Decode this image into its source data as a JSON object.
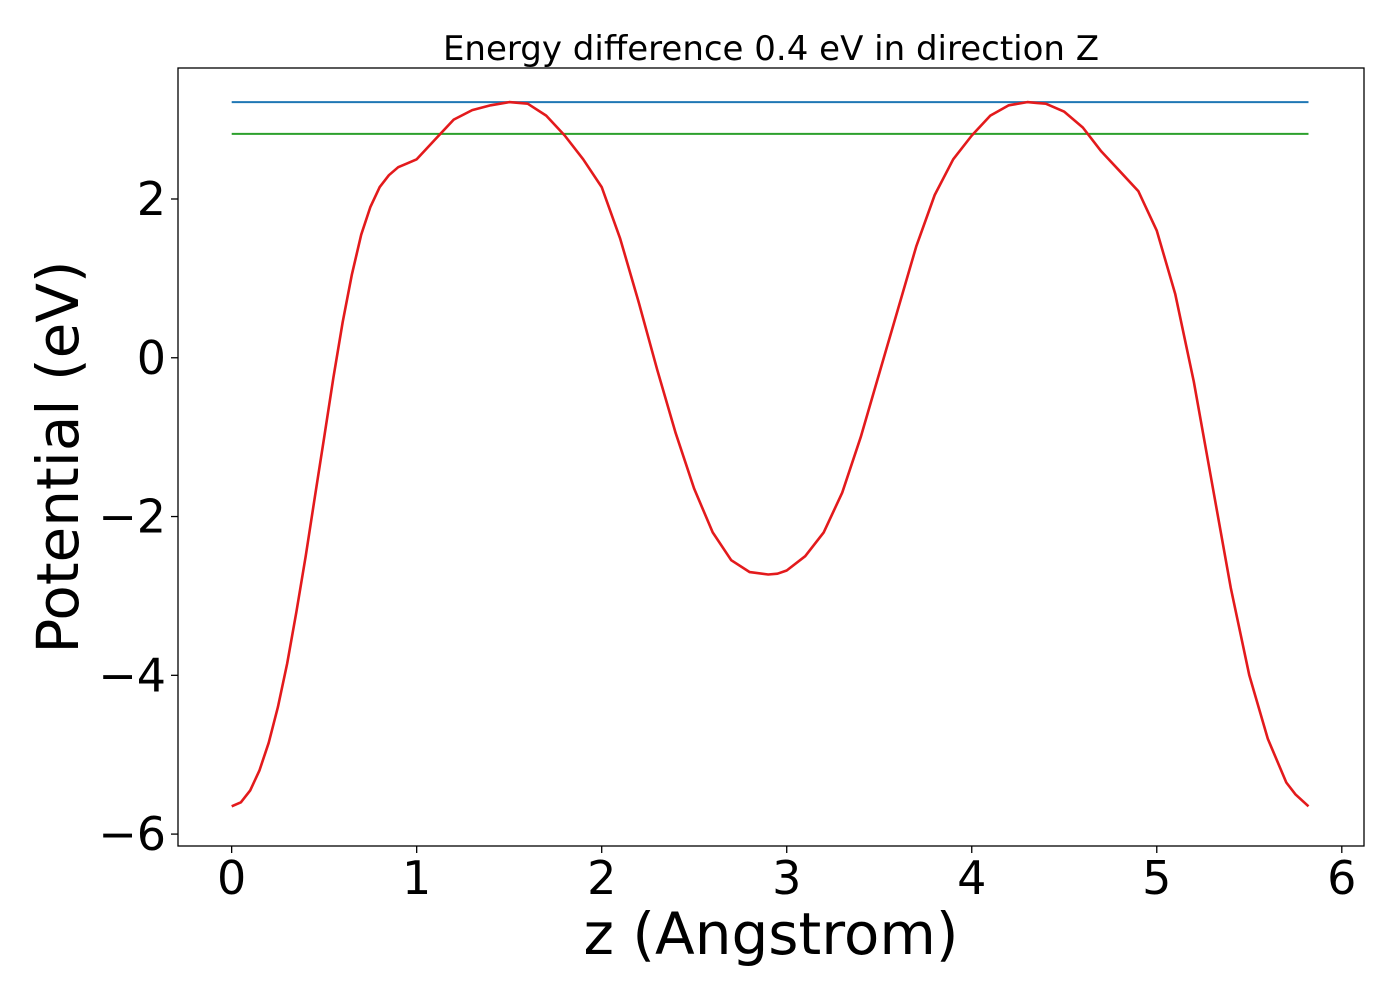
{
  "chart_data": {
    "type": "line",
    "title": "Energy difference 0.4 eV in direction Z",
    "xlabel": "z (Angstrom)",
    "ylabel": "Potential (eV)",
    "xlim": [
      -0.29,
      6.12
    ],
    "ylim": [
      -6.15,
      3.65
    ],
    "xticks": [
      0,
      1,
      2,
      3,
      4,
      5,
      6
    ],
    "xtick_labels": [
      "0",
      "1",
      "2",
      "3",
      "4",
      "5",
      "6"
    ],
    "yticks": [
      -6,
      -4,
      -2,
      0,
      2
    ],
    "ytick_labels": [
      "−6",
      "−4",
      "−2",
      "0",
      "2"
    ],
    "grid": false,
    "legend": "none",
    "series": [
      {
        "color": "#1f77b4",
        "x": [
          0,
          5.82
        ],
        "y": [
          3.22,
          3.22
        ]
      },
      {
        "color": "#2ca02c",
        "x": [
          0,
          5.82
        ],
        "y": [
          2.82,
          2.82
        ]
      },
      {
        "color": "#e31a1c",
        "x": [
          0,
          0.05,
          0.1,
          0.15,
          0.2,
          0.25,
          0.3,
          0.35,
          0.4,
          0.45,
          0.5,
          0.55,
          0.6,
          0.65,
          0.7,
          0.75,
          0.8,
          0.85,
          0.9,
          0.95,
          1.0,
          1.1,
          1.2,
          1.3,
          1.4,
          1.5,
          1.6,
          1.7,
          1.8,
          1.9,
          2.0,
          2.1,
          2.2,
          2.3,
          2.4,
          2.5,
          2.6,
          2.7,
          2.8,
          2.9,
          2.95,
          3.0,
          3.1,
          3.2,
          3.3,
          3.4,
          3.5,
          3.6,
          3.7,
          3.8,
          3.9,
          4.0,
          4.1,
          4.2,
          4.3,
          4.35,
          4.4,
          4.5,
          4.6,
          4.7,
          4.8,
          4.9,
          5.0,
          5.1,
          5.2,
          5.3,
          5.4,
          5.5,
          5.6,
          5.7,
          5.75,
          5.82
        ],
        "y": [
          -5.65,
          -5.6,
          -5.45,
          -5.2,
          -4.85,
          -4.4,
          -3.85,
          -3.2,
          -2.5,
          -1.75,
          -1.0,
          -0.25,
          0.45,
          1.05,
          1.55,
          1.9,
          2.15,
          2.3,
          2.4,
          2.45,
          2.5,
          2.75,
          3.0,
          3.12,
          3.18,
          3.22,
          3.2,
          3.05,
          2.8,
          2.5,
          2.15,
          1.5,
          0.7,
          -0.15,
          -0.95,
          -1.65,
          -2.2,
          -2.55,
          -2.7,
          -2.73,
          -2.72,
          -2.68,
          -2.5,
          -2.2,
          -1.7,
          -1.0,
          -0.2,
          0.6,
          1.4,
          2.05,
          2.5,
          2.8,
          3.05,
          3.18,
          3.22,
          3.21,
          3.2,
          3.1,
          2.9,
          2.6,
          2.35,
          2.1,
          1.6,
          0.8,
          -0.3,
          -1.6,
          -2.9,
          -4.0,
          -4.8,
          -5.35,
          -5.5,
          -5.65
        ]
      }
    ]
  }
}
